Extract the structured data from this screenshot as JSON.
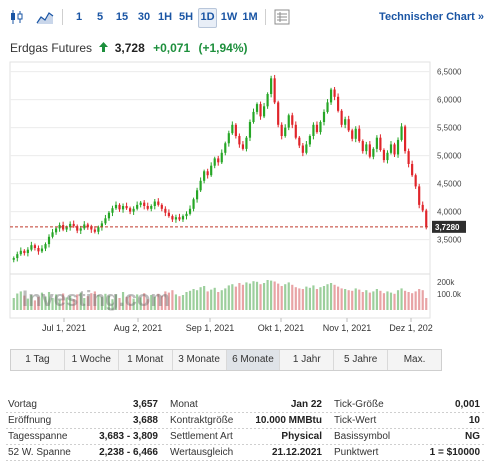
{
  "toolbar": {
    "timeframes": [
      "1",
      "5",
      "15",
      "30",
      "1H",
      "5H",
      "1D",
      "1W",
      "1M"
    ],
    "active_timeframe": "1D",
    "technical_chart_label": "Technischer Chart »"
  },
  "instrument": {
    "name": "Erdgas Futures",
    "price": "3,728",
    "change": "+0,071",
    "change_pct": "(+1,94%)"
  },
  "chart_data": {
    "type": "candlestick",
    "x_tick_labels": [
      "Jul 1, 2021",
      "Aug 2, 2021",
      "Sep 1, 2021",
      "Okt 1, 2021",
      "Nov 1, 2021",
      "Dez 1, 202"
    ],
    "y_tick_labels": [
      "3,5000",
      "4,0000",
      "4,5000",
      "5,0000",
      "5,5000",
      "6,0000",
      "6,5000"
    ],
    "y_ticks": [
      3.5,
      4.0,
      4.5,
      5.0,
      5.5,
      6.0,
      6.5
    ],
    "ylim": [
      3.1,
      6.6
    ],
    "current_price_label": "3,7280",
    "current_price": 3.728,
    "volume_tick_labels": [
      "200k",
      "100.0k"
    ],
    "watermark": "Investing.com",
    "closes": [
      3.17,
      3.24,
      3.3,
      3.26,
      3.32,
      3.4,
      3.35,
      3.29,
      3.34,
      3.42,
      3.55,
      3.63,
      3.7,
      3.76,
      3.68,
      3.72,
      3.78,
      3.74,
      3.66,
      3.7,
      3.77,
      3.72,
      3.68,
      3.64,
      3.72,
      3.79,
      3.88,
      3.98,
      4.06,
      4.12,
      4.04,
      4.1,
      4.06,
      4.0,
      4.05,
      4.12,
      4.16,
      4.1,
      4.05,
      4.1,
      4.18,
      4.12,
      4.05,
      3.98,
      3.92,
      3.86,
      3.9,
      3.86,
      3.92,
      3.96,
      4.05,
      4.22,
      4.38,
      4.55,
      4.72,
      4.65,
      4.82,
      4.95,
      4.88,
      5.05,
      5.22,
      5.4,
      5.55,
      5.35,
      5.2,
      5.12,
      5.32,
      5.6,
      5.78,
      5.92,
      5.7,
      5.88,
      6.1,
      6.38,
      5.95,
      5.55,
      5.35,
      5.5,
      5.72,
      5.55,
      5.32,
      5.18,
      5.05,
      5.2,
      5.35,
      5.55,
      5.42,
      5.6,
      5.78,
      5.95,
      6.18,
      6.05,
      5.8,
      5.55,
      5.65,
      5.45,
      5.3,
      5.48,
      5.26,
      5.08,
      5.2,
      4.98,
      5.12,
      5.32,
      5.1,
      4.92,
      5.05,
      5.2,
      5.02,
      5.28,
      5.52,
      5.08,
      4.85,
      4.65,
      4.45,
      4.12,
      4.02,
      3.728
    ],
    "volume_levels": [
      0.4,
      0.55,
      0.62,
      0.48,
      0.38,
      0.5,
      0.32,
      0.44,
      0.58,
      0.45,
      0.6,
      0.4,
      0.52,
      0.34,
      0.55,
      0.42,
      0.47,
      0.36,
      0.52,
      0.58,
      0.4,
      0.46,
      0.56,
      0.62,
      0.5,
      0.44,
      0.54,
      0.48,
      0.36,
      0.52,
      0.4,
      0.6,
      0.44,
      0.48,
      0.38,
      0.52,
      0.42,
      0.56,
      0.36,
      0.5,
      0.44,
      0.54,
      0.48,
      0.62,
      0.58,
      0.66,
      0.52,
      0.46,
      0.5,
      0.6,
      0.64,
      0.7,
      0.66,
      0.76,
      0.8,
      0.62,
      0.68,
      0.74,
      0.6,
      0.66,
      0.72,
      0.82,
      0.86,
      0.78,
      0.9,
      0.84,
      0.92,
      0.88,
      0.96,
      0.94,
      0.86,
      0.9,
      1.0,
      0.98,
      0.95,
      0.88,
      0.8,
      0.86,
      0.92,
      0.84,
      0.76,
      0.72,
      0.7,
      0.78,
      0.74,
      0.82,
      0.7,
      0.76,
      0.8,
      0.86,
      0.9,
      0.84,
      0.78,
      0.72,
      0.7,
      0.66,
      0.64,
      0.72,
      0.68,
      0.6,
      0.66,
      0.58,
      0.62,
      0.7,
      0.64,
      0.56,
      0.62,
      0.58,
      0.54,
      0.66,
      0.72,
      0.64,
      0.6,
      0.56,
      0.62,
      0.7,
      0.66,
      0.4
    ],
    "colors": {
      "up": "#26a626",
      "down": "#e0242a",
      "price_line": "#c0392b",
      "price_box": "#2e2e2e"
    }
  },
  "ranges": [
    "1 Tag",
    "1 Woche",
    "1 Monat",
    "3 Monate",
    "6 Monate",
    "1 Jahr",
    "5 Jahre",
    "Max."
  ],
  "active_range": "6 Monate",
  "stats": [
    [
      [
        "Vortag",
        "3,657"
      ],
      [
        "Monat",
        "Jan 22"
      ],
      [
        "Tick-Größe",
        "0,001"
      ]
    ],
    [
      [
        "Eröffnung",
        "3,688"
      ],
      [
        "Kontraktgröße",
        "10.000 MMBtu"
      ],
      [
        "Tick-Wert",
        "10"
      ]
    ],
    [
      [
        "Tagesspanne",
        "3,683 - 3,809"
      ],
      [
        "Settlement Art",
        "Physical"
      ],
      [
        "Basissymbol",
        "NG"
      ]
    ],
    [
      [
        "52 W. Spanne",
        "2,238 - 6,466"
      ],
      [
        "Wertausgleich",
        "21.12.2021"
      ],
      [
        "Punktwert",
        "1 = $10000"
      ]
    ]
  ]
}
